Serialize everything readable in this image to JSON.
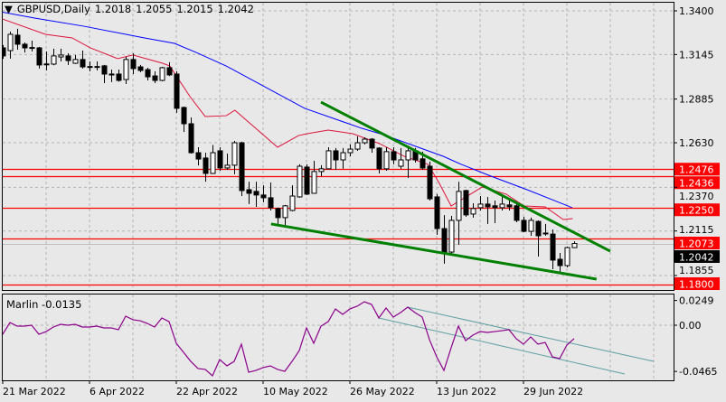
{
  "header": {
    "symbol": "GBPUSD,Daily",
    "open": "1.2018",
    "high": "1.2055",
    "low": "1.2015",
    "close": "1.2042"
  },
  "indicator": {
    "name": "Marlin",
    "value": "-0.0135"
  },
  "colors": {
    "background": "#e8e8e8",
    "grid": "#b4b4b4",
    "fast_ma": "#dc143c",
    "slow_ma": "#0000ff",
    "trendline": "#008000",
    "level": "#ff0000",
    "indicator_line": "#8b008b",
    "indicator_channel": "#5f9ea0",
    "current_price_line": "#c0c0c0"
  },
  "chart_data": [
    {
      "type": "candlestick",
      "title": "GBPUSD,Daily",
      "ylim": [
        1.174,
        1.345
      ],
      "price_ticks": [
        "1.3400",
        "1.3145",
        "1.2885",
        "1.2630",
        "1.2370",
        "1.2115",
        "1.1855"
      ],
      "date_labels": [
        {
          "label": "21 Mar 2022",
          "index": 0
        },
        {
          "label": "6 Apr 2022",
          "index": 12
        },
        {
          "label": "22 Apr 2022",
          "index": 24
        },
        {
          "label": "10 May 2022",
          "index": 36
        },
        {
          "label": "26 May 2022",
          "index": 48
        },
        {
          "label": "13 Jun 2022",
          "index": 60
        },
        {
          "label": "29 Jun 2022",
          "index": 72
        }
      ],
      "ohlc": [
        [
          1.3184,
          1.32,
          1.312,
          1.3137
        ],
        [
          1.3168,
          1.3279,
          1.3121,
          1.3263
        ],
        [
          1.3258,
          1.3295,
          1.3173,
          1.3205
        ],
        [
          1.3205,
          1.3215,
          1.3157,
          1.3184
        ],
        [
          1.3186,
          1.3226,
          1.3163,
          1.3184
        ],
        [
          1.3184,
          1.319,
          1.3063,
          1.3084
        ],
        [
          1.309,
          1.3163,
          1.3052,
          1.3089
        ],
        [
          1.3089,
          1.3179,
          1.3082,
          1.3137
        ],
        [
          1.3131,
          1.3179,
          1.3105,
          1.3142
        ],
        [
          1.3137,
          1.3152,
          1.3084,
          1.311
        ],
        [
          1.3094,
          1.3142,
          1.309,
          1.3116
        ],
        [
          1.3116,
          1.3168,
          1.3063,
          1.3073
        ],
        [
          1.3075,
          1.3105,
          1.3047,
          1.3073
        ],
        [
          1.3075,
          1.3105,
          1.3052,
          1.3073
        ],
        [
          1.3079,
          1.3084,
          1.2978,
          1.3031
        ],
        [
          1.3031,
          1.3057,
          1.2984,
          1.3029
        ],
        [
          1.3031,
          1.3057,
          1.2987,
          1.2994
        ],
        [
          1.2999,
          1.3131,
          1.2973,
          1.3116
        ],
        [
          1.3116,
          1.3152,
          1.3031,
          1.3063
        ],
        [
          1.3073,
          1.3084,
          1.3042,
          1.3052
        ],
        [
          1.3057,
          1.3068,
          1.2994,
          1.3015
        ],
        [
          1.302,
          1.3047,
          1.2978,
          1.2994
        ],
        [
          1.2994,
          1.3073,
          1.2989,
          1.3068
        ],
        [
          1.3068,
          1.31,
          1.302,
          1.3026
        ],
        [
          1.3031,
          1.3047,
          1.2805,
          1.2831
        ],
        [
          1.2836,
          1.2841,
          1.2693,
          1.2741
        ],
        [
          1.2741,
          1.2778,
          1.2567,
          1.2572
        ],
        [
          1.2572,
          1.2604,
          1.2498,
          1.2535
        ],
        [
          1.2541,
          1.2572,
          1.2403,
          1.2451
        ],
        [
          1.2451,
          1.2617,
          1.2451,
          1.2572
        ],
        [
          1.2583,
          1.2604,
          1.2467,
          1.2483
        ],
        [
          1.2483,
          1.2567,
          1.2472,
          1.2499
        ],
        [
          1.2499,
          1.2641,
          1.2446,
          1.263
        ],
        [
          1.263,
          1.2636,
          1.2319,
          1.2351
        ],
        [
          1.2356,
          1.2403,
          1.2272,
          1.2335
        ],
        [
          1.2346,
          1.2403,
          1.2256,
          1.2325
        ],
        [
          1.2325,
          1.2382,
          1.2283,
          1.2309
        ],
        [
          1.2309,
          1.2398,
          1.2235,
          1.2251
        ],
        [
          1.2246,
          1.2251,
          1.2156,
          1.2193
        ],
        [
          1.2193,
          1.2267,
          1.215,
          1.2262
        ],
        [
          1.2235,
          1.2382,
          1.223,
          1.2319
        ],
        [
          1.2314,
          1.2504,
          1.2309,
          1.2493
        ],
        [
          1.2488,
          1.2504,
          1.2325,
          1.233
        ],
        [
          1.2335,
          1.2525,
          1.2335,
          1.2462
        ],
        [
          1.2462,
          1.2499,
          1.2435,
          1.2478
        ],
        [
          1.2478,
          1.2604,
          1.2478,
          1.2583
        ],
        [
          1.2583,
          1.2599,
          1.2472,
          1.253
        ],
        [
          1.253,
          1.2599,
          1.2478,
          1.2572
        ],
        [
          1.2572,
          1.262,
          1.2551,
          1.2593
        ],
        [
          1.2593,
          1.2667,
          1.2583,
          1.263
        ],
        [
          1.263,
          1.2662,
          1.262,
          1.2651
        ],
        [
          1.2651,
          1.2657,
          1.2572,
          1.2599
        ],
        [
          1.2599,
          1.2604,
          1.2451,
          1.2478
        ],
        [
          1.2478,
          1.2604,
          1.2467,
          1.2578
        ],
        [
          1.2578,
          1.2604,
          1.2504,
          1.253
        ],
        [
          1.2493,
          1.2599,
          1.2478,
          1.253
        ],
        [
          1.253,
          1.2609,
          1.2425,
          1.2583
        ],
        [
          1.2583,
          1.2599,
          1.2515,
          1.253
        ],
        [
          1.2536,
          1.2578,
          1.2472,
          1.2483
        ],
        [
          1.2493,
          1.252,
          1.2293,
          1.2303
        ],
        [
          1.2314,
          1.233,
          1.2092,
          1.2129
        ],
        [
          1.2129,
          1.2208,
          1.1924,
          1.1987
        ],
        [
          1.1992,
          1.2203,
          1.1971,
          1.2177
        ],
        [
          1.2177,
          1.2403,
          1.2034,
          1.2346
        ],
        [
          1.2351,
          1.2356,
          1.2198,
          1.2209
        ],
        [
          1.2214,
          1.2277,
          1.2193,
          1.2246
        ],
        [
          1.2251,
          1.2319,
          1.2235,
          1.2272
        ],
        [
          1.2272,
          1.2314,
          1.2156,
          1.2256
        ],
        [
          1.2262,
          1.2293,
          1.2161,
          1.2251
        ],
        [
          1.2251,
          1.233,
          1.2235,
          1.2272
        ],
        [
          1.2267,
          1.2293,
          1.2235,
          1.2256
        ],
        [
          1.2262,
          1.2272,
          1.2166,
          1.2177
        ],
        [
          1.2177,
          1.2198,
          1.2108,
          1.2113
        ],
        [
          1.2113,
          1.2193,
          1.2087,
          1.2177
        ],
        [
          1.2171,
          1.2177,
          1.1966,
          1.2087
        ],
        [
          1.2103,
          1.2156,
          1.2087,
          1.2102
        ],
        [
          1.2097,
          1.2124,
          1.1892,
          1.1945
        ],
        [
          1.195,
          1.1987,
          1.1866,
          1.1913
        ],
        [
          1.1913,
          1.2024,
          1.1903,
          1.2018
        ],
        [
          1.2018,
          1.2055,
          1.2015,
          1.2042
        ]
      ],
      "fast_ma": [
        [
          -0.4,
          1.3358
        ],
        [
          5.9,
          1.3263
        ],
        [
          9.6,
          1.3242
        ],
        [
          12.1,
          1.3184
        ],
        [
          15.9,
          1.3121
        ],
        [
          18,
          1.3142
        ],
        [
          22.1,
          1.3094
        ],
        [
          23.1,
          1.3078
        ],
        [
          25.9,
          1.2899
        ],
        [
          28,
          1.2783
        ],
        [
          30.9,
          1.2788
        ],
        [
          32.1,
          1.282
        ],
        [
          38,
          1.2604
        ],
        [
          40.9,
          1.2672
        ],
        [
          42.1,
          1.2683
        ],
        [
          45,
          1.2704
        ],
        [
          48.4,
          1.2683
        ],
        [
          52.1,
          1.2625
        ],
        [
          55.5,
          1.2551
        ],
        [
          58.8,
          1.2504
        ],
        [
          60.3,
          1.2398
        ],
        [
          62,
          1.2261
        ],
        [
          66.3,
          1.2372
        ],
        [
          69.6,
          1.233
        ],
        [
          72.1,
          1.2261
        ],
        [
          75,
          1.2256
        ],
        [
          77.5,
          1.2182
        ],
        [
          78.8,
          1.2187
        ]
      ],
      "slow_ma": [
        [
          -0.4,
          1.3395
        ],
        [
          4.4,
          1.3358
        ],
        [
          11.25,
          1.331
        ],
        [
          19.6,
          1.3242
        ],
        [
          23.75,
          1.321
        ],
        [
          26.75,
          1.3157
        ],
        [
          30.9,
          1.3078
        ],
        [
          41.75,
          1.2831
        ],
        [
          49.6,
          1.2715
        ],
        [
          53,
          1.2672
        ],
        [
          57.1,
          1.2609
        ],
        [
          60.9,
          1.2551
        ],
        [
          63.4,
          1.2504
        ],
        [
          67.5,
          1.2435
        ],
        [
          72.5,
          1.2356
        ],
        [
          76.25,
          1.2293
        ],
        [
          78.75,
          1.2251
        ]
      ],
      "trendlines": [
        {
          "name": "upper",
          "from": [
            44,
            1.2867
          ],
          "to": [
            84,
            1.1997
          ]
        },
        {
          "name": "lower",
          "from": [
            37.1,
            1.2156
          ],
          "to": [
            82.1,
            1.1834
          ]
        }
      ],
      "levels": [
        {
          "price": 1.2436,
          "label": "1.2436",
          "kind": "level"
        },
        {
          "price": 1.2476,
          "label": "1.2476",
          "kind": "level"
        },
        {
          "price": 1.225,
          "label": "1.2250",
          "kind": "level"
        },
        {
          "price": 1.2042,
          "label": "1.2042",
          "kind": "current"
        },
        {
          "price": 1.2073,
          "label": "1.2073",
          "kind": "level"
        },
        {
          "price": 1.18,
          "label": "1.1800",
          "kind": "level"
        }
      ]
    },
    {
      "type": "line",
      "title": "Marlin",
      "ylim": [
        -0.055,
        0.032
      ],
      "ticks": [
        {
          "value": 0.0249,
          "label": "0.0249"
        },
        {
          "value": 0,
          "label": "0.00"
        },
        {
          "value": -0.0465,
          "label": "-0.0465"
        }
      ],
      "values": [
        -0.0091,
        0.0027,
        -0.0009,
        -0.0009,
        0,
        -0.0091,
        -0.0064,
        -0.0018,
        0.0009,
        0,
        0.0009,
        -0.0018,
        -0.0018,
        -0.0009,
        -0.0027,
        -0.0027,
        -0.0045,
        0.0091,
        0.0055,
        0.0045,
        0.0018,
        -0.0018,
        0.0073,
        0.0036,
        -0.0182,
        -0.0273,
        -0.0364,
        -0.0436,
        -0.0445,
        -0.0509,
        -0.0345,
        -0.0409,
        -0.0364,
        -0.0191,
        -0.0473,
        -0.0455,
        -0.0427,
        -0.0409,
        -0.0445,
        -0.0464,
        -0.0364,
        -0.0255,
        -0.0027,
        -0.0182,
        -0.0009,
        0.0036,
        0.0164,
        0.0109,
        0.0164,
        0.0191,
        0.0236,
        0.0209,
        0.0073,
        0.0173,
        0.0082,
        0.0127,
        0.0182,
        0.0127,
        0.0082,
        -0.0145,
        -0.0318,
        -0.0455,
        -0.0227,
        -0.0009,
        -0.0155,
        -0.01,
        -0.0064,
        -0.0073,
        -0.0064,
        -0.0055,
        -0.0045,
        -0.0136,
        -0.0191,
        -0.0118,
        -0.0191,
        -0.0173,
        -0.0318,
        -0.0336,
        -0.02,
        -0.0135
      ],
      "channel": [
        {
          "name": "upper",
          "from": [
            56,
            0.0182
          ],
          "to": [
            90,
            -0.0364
          ]
        },
        {
          "name": "lower",
          "from": [
            52,
            0.0073
          ],
          "to": [
            86,
            -0.0491
          ]
        }
      ]
    }
  ]
}
